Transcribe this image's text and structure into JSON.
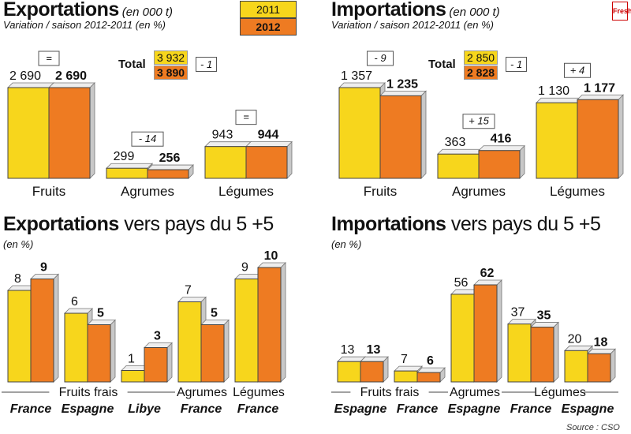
{
  "legend": {
    "y2011": "2011",
    "y2012": "2012"
  },
  "colors": {
    "y2011": "#f7d61c",
    "y2012": "#ee7b22"
  },
  "export_top": {
    "title": "Exportations",
    "unit": "(en 000 t)",
    "subtitle": "Variation / saison 2012-2011 (en %)",
    "total_label": "Total",
    "total_2011": "3 932",
    "total_2012": "3 890",
    "total_var": "- 1"
  },
  "import_top": {
    "title": "Importations",
    "unit": "(en 000 t)",
    "subtitle": "Variation / saison 2012-2011 (en %)",
    "total_label": "Total",
    "total_2011": "2 850",
    "total_2012": "2 828",
    "total_var": "- 1"
  },
  "export_bottom": {
    "title": "Exportations",
    "title_rest": "vers pays du 5 +5",
    "unit": "(en %)"
  },
  "import_bottom": {
    "title": "Importations",
    "title_rest": "vers pays du 5 +5",
    "unit": "(en %)"
  },
  "source": "Source : CSO",
  "logo": "Fresh",
  "chart_data": [
    {
      "type": "bar",
      "title": "Exportations",
      "categories": [
        "Fruits",
        "Agrumes",
        "Légumes"
      ],
      "variation": [
        "=",
        "- 14",
        "="
      ],
      "series": [
        {
          "name": "2011",
          "values": [
            2690,
            299,
            943
          ],
          "labels": [
            "2 690",
            "299",
            "943"
          ]
        },
        {
          "name": "2012",
          "values": [
            2690,
            256,
            944
          ],
          "labels": [
            "2 690",
            "256",
            "944"
          ]
        }
      ],
      "ylim": [
        0,
        2690
      ]
    },
    {
      "type": "bar",
      "title": "Importations",
      "categories": [
        "Fruits",
        "Agrumes",
        "Légumes"
      ],
      "variation": [
        "- 9",
        "+ 15",
        "+ 4"
      ],
      "series": [
        {
          "name": "2011",
          "values": [
            1357,
            363,
            1130
          ],
          "labels": [
            "1 357",
            "363",
            "1 130"
          ]
        },
        {
          "name": "2012",
          "values": [
            1235,
            416,
            1177
          ],
          "labels": [
            "1 235",
            "416",
            "1 177"
          ]
        }
      ],
      "ylim": [
        0,
        1357
      ]
    },
    {
      "type": "bar",
      "title": "Exportations vers pays du 5 +5",
      "categories": [
        "France",
        "Espagne",
        "Libye",
        "France",
        "France"
      ],
      "groups": [
        {
          "label": "Fruits frais",
          "from": 0,
          "to": 2
        },
        {
          "label": "Agrumes",
          "from": 3,
          "to": 3
        },
        {
          "label": "Légumes",
          "from": 4,
          "to": 4
        }
      ],
      "series": [
        {
          "name": "2011",
          "values": [
            8,
            6,
            1,
            7,
            9
          ]
        },
        {
          "name": "2012",
          "values": [
            9,
            5,
            3,
            5,
            10
          ]
        }
      ],
      "ylim": [
        0,
        10
      ]
    },
    {
      "type": "bar",
      "title": "Importations vers pays du 5 +5",
      "categories": [
        "Espagne",
        "France",
        "Espagne",
        "France",
        "Espagne"
      ],
      "groups": [
        {
          "label": "Fruits frais",
          "from": 0,
          "to": 1
        },
        {
          "label": "Agrumes",
          "from": 2,
          "to": 2
        },
        {
          "label": "Légumes",
          "from": 3,
          "to": 4
        }
      ],
      "series": [
        {
          "name": "2011",
          "values": [
            13,
            7,
            56,
            37,
            20
          ]
        },
        {
          "name": "2012",
          "values": [
            13,
            6,
            62,
            35,
            18
          ]
        }
      ],
      "ylim": [
        0,
        62
      ]
    }
  ]
}
